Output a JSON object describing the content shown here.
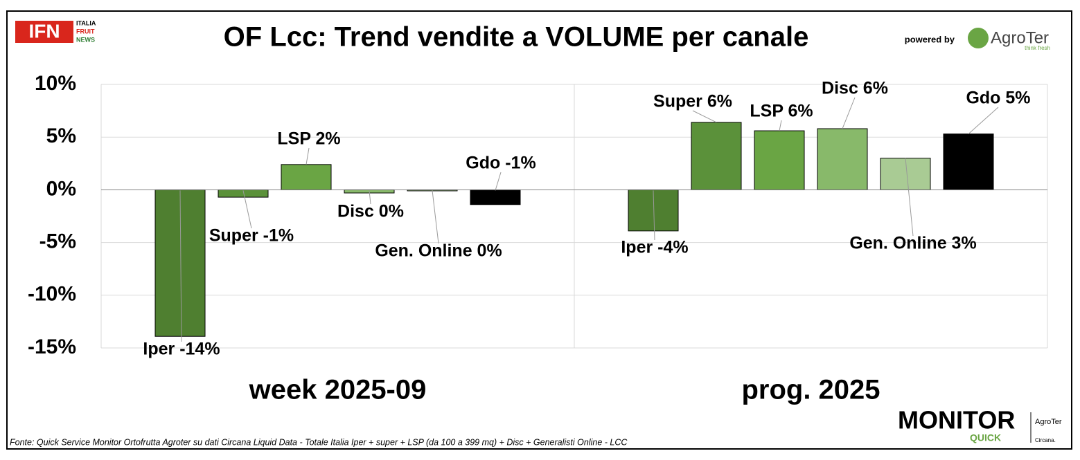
{
  "chart_data": {
    "type": "bar",
    "title": "OF Lcc: Trend vendite a VOLUME per canale",
    "categories": [
      "week 2025-09",
      "prog. 2025"
    ],
    "series": [
      {
        "name": "Iper",
        "color": "#4f7f30",
        "values": [
          -13.9,
          -3.9
        ],
        "value_labels": [
          "Iper -14%",
          "Iper -4%"
        ]
      },
      {
        "name": "Super",
        "color": "#5b913a",
        "values": [
          -0.7,
          6.4
        ],
        "value_labels": [
          "Super -1%",
          "Super 6%"
        ]
      },
      {
        "name": "LSP",
        "color": "#6aa544",
        "values": [
          2.4,
          5.6
        ],
        "value_labels": [
          "LSP 2%",
          "LSP 6%"
        ]
      },
      {
        "name": "Disc",
        "color": "#88b96a",
        "values": [
          -0.3,
          5.8
        ],
        "value_labels": [
          "Disc 0%",
          "Disc 6%"
        ]
      },
      {
        "name": "Gen. Online",
        "color": "#a9cb94",
        "values": [
          -0.1,
          3.0
        ],
        "value_labels": [
          "Gen. Online 0%",
          "Gen. Online 3%"
        ]
      },
      {
        "name": "Gdo",
        "color": "#000000",
        "values": [
          -1.4,
          5.3
        ],
        "value_labels": [
          "Gdo -1%",
          "Gdo 5%"
        ]
      }
    ],
    "ylim": [
      -15,
      10
    ],
    "yticks": [
      {
        "value": -15,
        "label": "-15%"
      },
      {
        "value": -10,
        "label": "-10%"
      },
      {
        "value": -5,
        "label": "-5%"
      },
      {
        "value": 0,
        "label": "0%"
      },
      {
        "value": 5,
        "label": "5%"
      },
      {
        "value": 10,
        "label": "10%"
      }
    ],
    "grid": true,
    "source": "Fonte: Quick Service Monitor Ortofrutta Agroter su dati Circana Liquid Data - Totale Italia Iper + super + LSP (da 100 a 399 mq) + Disc + Generalisti Online - LCC",
    "logos": {
      "ifn": "IFN",
      "ifn_sub": [
        "ITALIA",
        "FRUIT",
        "NEWS"
      ],
      "powered_by": "powered by",
      "agroter": "AgroTer",
      "agroter_sub": "think fresh",
      "monitor": "MONITOR",
      "quick": "QUICK",
      "circana": "Circana."
    }
  }
}
